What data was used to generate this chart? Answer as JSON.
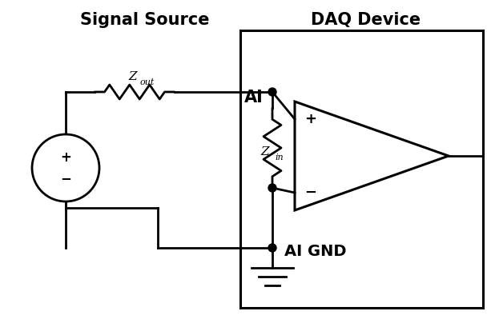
{
  "title_left": "Signal Source",
  "title_right": "DAQ Device",
  "label_AI": "AI",
  "label_AI_GND": "AI GND",
  "label_Zout": "Z",
  "label_Zout_sub": "out",
  "label_Zin": "Z",
  "label_Zin_sub": "in",
  "label_plus_source": "+",
  "label_minus_source": "−",
  "label_plus_amp": "+",
  "label_minus_amp": "−",
  "bg_color": "#ffffff",
  "line_color": "#000000",
  "lw": 2.0,
  "fig_width": 6.13,
  "fig_height": 4.04
}
